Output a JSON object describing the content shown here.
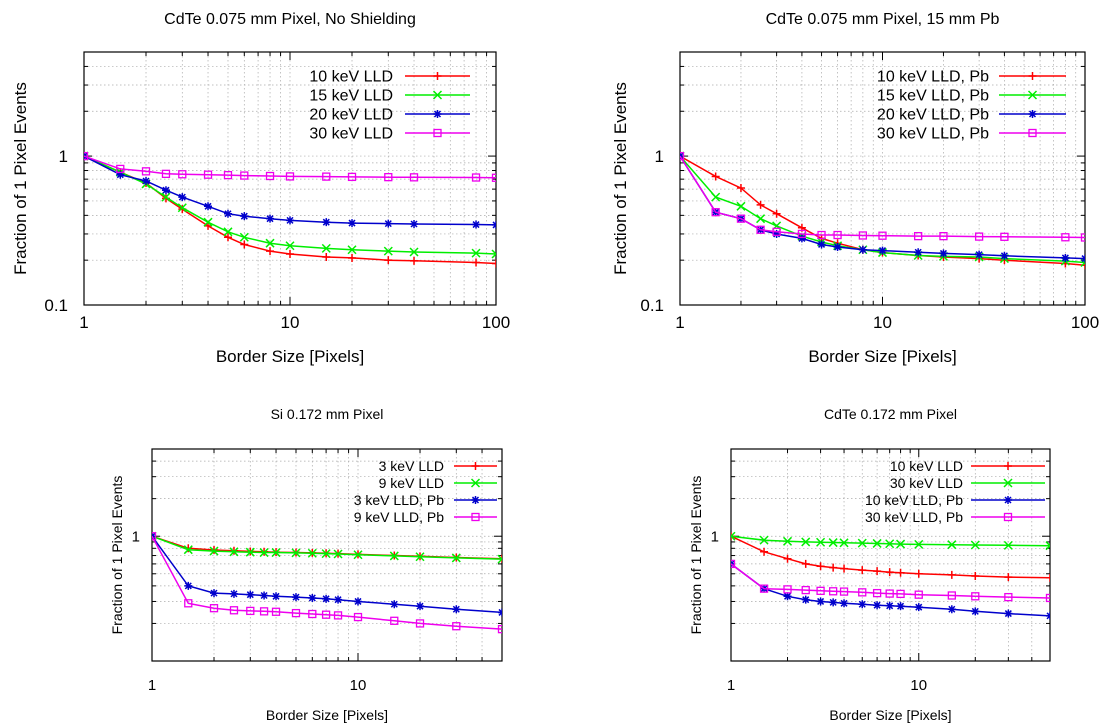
{
  "chart_data": [
    {
      "type": "line",
      "title": "CdTe 0.075 mm Pixel, No Shielding",
      "xlabel": "Border Size  [Pixels]",
      "ylabel": "Fraction of 1 Pixel Events",
      "xscale": "log",
      "yscale": "log",
      "xlim": [
        1,
        100
      ],
      "ylim": [
        0.1,
        5
      ],
      "xticks": [
        "1",
        "10",
        "100"
      ],
      "yticks": [
        "0.1",
        "1"
      ],
      "grid": true,
      "legend_position": "top-right",
      "series": [
        {
          "name": "10 keV LLD",
          "color": "#ff0000",
          "marker": "plus",
          "x": [
            1,
            1.5,
            2,
            2.5,
            3,
            4,
            5,
            6,
            8,
            10,
            15,
            20,
            30,
            40,
            80,
            100
          ],
          "y": [
            1.0,
            0.78,
            0.66,
            0.52,
            0.44,
            0.34,
            0.285,
            0.255,
            0.23,
            0.22,
            0.21,
            0.207,
            0.2,
            0.198,
            0.193,
            0.19
          ]
        },
        {
          "name": "15 keV LLD",
          "color": "#00ee00",
          "marker": "cross",
          "x": [
            1,
            1.5,
            2,
            2.5,
            3,
            4,
            5,
            6,
            8,
            10,
            15,
            20,
            30,
            40,
            80,
            100
          ],
          "y": [
            1.0,
            0.78,
            0.65,
            0.53,
            0.45,
            0.36,
            0.31,
            0.285,
            0.26,
            0.25,
            0.24,
            0.235,
            0.23,
            0.227,
            0.223,
            0.22
          ]
        },
        {
          "name": "20 keV LLD",
          "color": "#0000cc",
          "marker": "star",
          "x": [
            1,
            1.5,
            2,
            2.5,
            3,
            4,
            5,
            6,
            8,
            10,
            15,
            20,
            30,
            40,
            80,
            100
          ],
          "y": [
            1.0,
            0.75,
            0.68,
            0.59,
            0.53,
            0.46,
            0.41,
            0.395,
            0.38,
            0.37,
            0.36,
            0.355,
            0.352,
            0.35,
            0.347,
            0.345
          ]
        },
        {
          "name": "30 keV LLD",
          "color": "#ee00ee",
          "marker": "square",
          "x": [
            1,
            1.5,
            2,
            2.5,
            3,
            4,
            5,
            6,
            8,
            10,
            15,
            20,
            30,
            40,
            80,
            100
          ],
          "y": [
            1.0,
            0.82,
            0.79,
            0.76,
            0.755,
            0.75,
            0.745,
            0.74,
            0.735,
            0.73,
            0.728,
            0.725,
            0.722,
            0.72,
            0.718,
            0.715
          ]
        }
      ]
    },
    {
      "type": "line",
      "title": "CdTe 0.075 mm Pixel, 15 mm Pb",
      "xlabel": "Border Size  [Pixels]",
      "ylabel": "Fraction of 1 Pixel Events",
      "xscale": "log",
      "yscale": "log",
      "xlim": [
        1,
        100
      ],
      "ylim": [
        0.1,
        5
      ],
      "xticks": [
        "1",
        "10",
        "100"
      ],
      "yticks": [
        "0.1",
        "1"
      ],
      "grid": true,
      "legend_position": "top-right",
      "series": [
        {
          "name": "10 keV LLD, Pb",
          "color": "#ff0000",
          "marker": "plus",
          "x": [
            1,
            1.5,
            2,
            2.5,
            3,
            4,
            5,
            6,
            8,
            10,
            15,
            20,
            30,
            40,
            80,
            100
          ],
          "y": [
            1.0,
            0.73,
            0.61,
            0.47,
            0.41,
            0.33,
            0.28,
            0.26,
            0.235,
            0.225,
            0.215,
            0.21,
            0.205,
            0.2,
            0.19,
            0.185
          ]
        },
        {
          "name": "15 keV LLD, Pb",
          "color": "#00ee00",
          "marker": "cross",
          "x": [
            1,
            1.5,
            2,
            2.5,
            3,
            4,
            5,
            6,
            8,
            10,
            15,
            20,
            30,
            40,
            80,
            100
          ],
          "y": [
            1.0,
            0.53,
            0.46,
            0.38,
            0.34,
            0.29,
            0.265,
            0.25,
            0.235,
            0.225,
            0.215,
            0.212,
            0.21,
            0.205,
            0.197,
            0.193
          ]
        },
        {
          "name": "20 keV LLD, Pb",
          "color": "#0000cc",
          "marker": "star",
          "x": [
            1,
            1.5,
            2,
            2.5,
            3,
            4,
            5,
            6,
            8,
            10,
            15,
            20,
            30,
            40,
            80,
            100
          ],
          "y": [
            1.0,
            0.42,
            0.38,
            0.32,
            0.3,
            0.28,
            0.255,
            0.245,
            0.235,
            0.232,
            0.226,
            0.222,
            0.218,
            0.214,
            0.207,
            0.205
          ]
        },
        {
          "name": "30 keV LLD, Pb",
          "color": "#ee00ee",
          "marker": "square",
          "x": [
            1,
            1.5,
            2,
            2.5,
            3,
            4,
            5,
            6,
            8,
            10,
            15,
            20,
            30,
            40,
            80,
            100
          ],
          "y": [
            1.0,
            0.42,
            0.38,
            0.32,
            0.31,
            0.3,
            0.295,
            0.295,
            0.293,
            0.292,
            0.29,
            0.29,
            0.288,
            0.287,
            0.285,
            0.284
          ]
        }
      ]
    },
    {
      "type": "line",
      "title": "Si 0.172 mm Pixel",
      "xlabel": "Border Size  [Pixels]",
      "ylabel": "Fraction of 1 Pixel Events",
      "xscale": "log",
      "yscale": "log",
      "xlim": [
        1,
        50
      ],
      "ylim": [
        0.1,
        5
      ],
      "xticks": [
        "1",
        "10"
      ],
      "yticks": [
        "1"
      ],
      "grid": true,
      "legend_position": "top-right",
      "series": [
        {
          "name": "3 keV LLD",
          "color": "#ff0000",
          "marker": "plus",
          "x": [
            1,
            1.5,
            2,
            2.5,
            3,
            3.5,
            4,
            5,
            6,
            7,
            8,
            10,
            15,
            20,
            30,
            50
          ],
          "y": [
            1.0,
            0.8,
            0.775,
            0.765,
            0.755,
            0.75,
            0.745,
            0.74,
            0.735,
            0.73,
            0.725,
            0.715,
            0.7,
            0.69,
            0.675,
            0.66
          ]
        },
        {
          "name": "9 keV LLD",
          "color": "#00ee00",
          "marker": "cross",
          "x": [
            1,
            1.5,
            2,
            2.5,
            3,
            3.5,
            4,
            5,
            6,
            7,
            8,
            10,
            15,
            20,
            30,
            50
          ],
          "y": [
            1.0,
            0.78,
            0.76,
            0.75,
            0.745,
            0.74,
            0.74,
            0.735,
            0.73,
            0.725,
            0.72,
            0.71,
            0.695,
            0.685,
            0.67,
            0.655
          ]
        },
        {
          "name": "3 keV LLD, Pb",
          "color": "#0000cc",
          "marker": "star",
          "x": [
            1,
            1.5,
            2,
            2.5,
            3,
            3.5,
            4,
            5,
            6,
            7,
            8,
            10,
            15,
            20,
            30,
            50
          ],
          "y": [
            1.0,
            0.4,
            0.35,
            0.345,
            0.34,
            0.335,
            0.33,
            0.325,
            0.32,
            0.315,
            0.31,
            0.3,
            0.285,
            0.275,
            0.26,
            0.245
          ]
        },
        {
          "name": "9 keV LLD, Pb",
          "color": "#ee00ee",
          "marker": "square",
          "x": [
            1,
            1.5,
            2,
            2.5,
            3,
            3.5,
            4,
            5,
            6,
            7,
            8,
            10,
            15,
            20,
            30,
            50
          ],
          "y": [
            1.0,
            0.29,
            0.265,
            0.255,
            0.252,
            0.25,
            0.248,
            0.242,
            0.238,
            0.235,
            0.232,
            0.225,
            0.21,
            0.2,
            0.19,
            0.18
          ]
        }
      ]
    },
    {
      "type": "line",
      "title": "CdTe 0.172 mm Pixel",
      "xlabel": "Border Size  [Pixels]",
      "ylabel": "Fraction of 1 Pixel Events",
      "xscale": "log",
      "yscale": "log",
      "xlim": [
        1,
        50
      ],
      "ylim": [
        0.1,
        5
      ],
      "xticks": [
        "1",
        "10"
      ],
      "yticks": [
        "1"
      ],
      "grid": true,
      "legend_position": "top-right",
      "series": [
        {
          "name": "10 keV LLD",
          "color": "#ff0000",
          "marker": "plus",
          "x": [
            1,
            1.5,
            2,
            2.5,
            3,
            3.5,
            4,
            5,
            6,
            7,
            8,
            10,
            15,
            20,
            30,
            50
          ],
          "y": [
            1.0,
            0.75,
            0.66,
            0.6,
            0.575,
            0.56,
            0.55,
            0.535,
            0.525,
            0.515,
            0.51,
            0.5,
            0.49,
            0.48,
            0.47,
            0.465
          ]
        },
        {
          "name": "30 keV LLD",
          "color": "#00ee00",
          "marker": "cross",
          "x": [
            1,
            1.5,
            2,
            2.5,
            3,
            3.5,
            4,
            5,
            6,
            7,
            8,
            10,
            15,
            20,
            30,
            50
          ],
          "y": [
            1.0,
            0.93,
            0.91,
            0.9,
            0.895,
            0.89,
            0.885,
            0.88,
            0.875,
            0.87,
            0.865,
            0.86,
            0.855,
            0.85,
            0.845,
            0.84
          ]
        },
        {
          "name": "10 keV LLD, Pb",
          "color": "#0000cc",
          "marker": "star",
          "x": [
            1,
            1.5,
            2,
            2.5,
            3,
            3.5,
            4,
            5,
            6,
            7,
            8,
            10,
            15,
            20,
            30,
            50
          ],
          "y": [
            0.6,
            0.38,
            0.33,
            0.31,
            0.3,
            0.295,
            0.29,
            0.285,
            0.28,
            0.277,
            0.275,
            0.27,
            0.26,
            0.25,
            0.24,
            0.23
          ]
        },
        {
          "name": "30 keV LLD, Pb",
          "color": "#ee00ee",
          "marker": "square",
          "x": [
            1,
            1.5,
            2,
            2.5,
            3,
            3.5,
            4,
            5,
            6,
            7,
            8,
            10,
            15,
            20,
            30,
            50
          ],
          "y": [
            0.6,
            0.38,
            0.375,
            0.37,
            0.365,
            0.362,
            0.36,
            0.355,
            0.35,
            0.347,
            0.345,
            0.34,
            0.335,
            0.33,
            0.325,
            0.32
          ]
        }
      ]
    }
  ]
}
